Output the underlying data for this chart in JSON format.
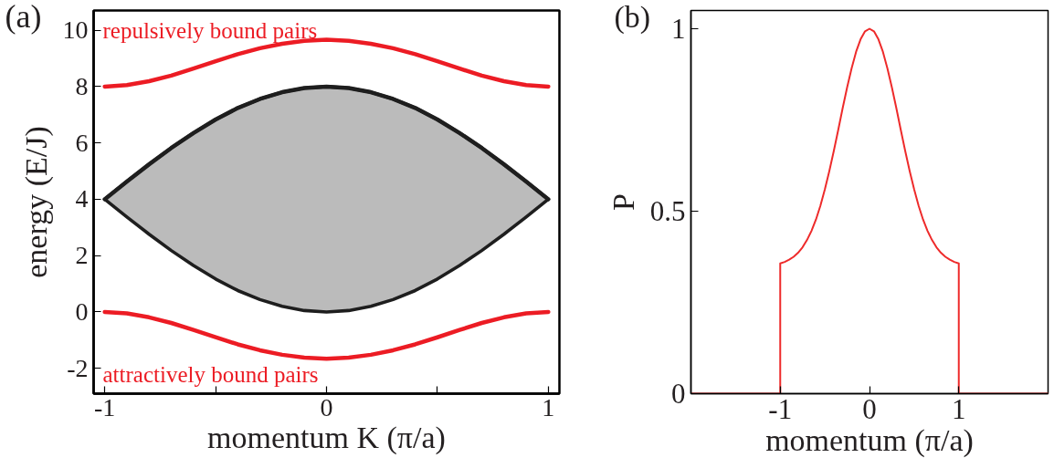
{
  "chart_data": [
    {
      "type": "line",
      "title": "(a)",
      "xlabel": "momentum K (π/a)",
      "ylabel": "energy (E/J)",
      "x": [
        -1,
        -0.9,
        -0.8,
        -0.7,
        -0.6,
        -0.5,
        -0.4,
        -0.3,
        -0.2,
        -0.1,
        0,
        0.1,
        0.2,
        0.3,
        0.4,
        0.5,
        0.6,
        0.7,
        0.8,
        0.9,
        1
      ],
      "series": [
        {
          "type": "line",
          "color": "#1e1e1e",
          "values": [
            4.0,
            4.63,
            5.24,
            5.82,
            6.35,
            6.83,
            7.24,
            7.56,
            7.8,
            7.95,
            8.0,
            7.95,
            7.8,
            7.56,
            7.24,
            6.83,
            6.35,
            5.82,
            5.24,
            4.63,
            4.0
          ],
          "lower": [
            4.0,
            3.37,
            2.76,
            2.18,
            1.65,
            1.17,
            0.76,
            0.44,
            0.2,
            0.05,
            0.0,
            0.05,
            0.2,
            0.44,
            0.76,
            1.17,
            1.65,
            2.18,
            2.76,
            3.37,
            4.0
          ],
          "upper": [
            4.0,
            4.63,
            5.24,
            5.82,
            6.35,
            6.83,
            7.24,
            7.56,
            7.8,
            7.95,
            8.0,
            7.95,
            7.8,
            7.56,
            7.24,
            6.83,
            6.35,
            5.82,
            5.24,
            4.63,
            4.0
          ]
        },
        {
          "type": "line",
          "name": "repulsively bound pairs",
          "color": "#ec1c24",
          "values": [
            8.0,
            8.05,
            8.19,
            8.39,
            8.64,
            8.9,
            9.15,
            9.36,
            9.52,
            9.62,
            9.66,
            9.62,
            9.52,
            9.36,
            9.15,
            8.9,
            8.64,
            8.39,
            8.19,
            8.05,
            8.0
          ]
        },
        {
          "type": "line",
          "name": "attractively bound pairs",
          "color": "#ec1c24",
          "values": [
            0.0,
            -0.05,
            -0.19,
            -0.39,
            -0.64,
            -0.9,
            -1.15,
            -1.36,
            -1.52,
            -1.62,
            -1.66,
            -1.62,
            -1.52,
            -1.36,
            -1.15,
            -0.9,
            -0.64,
            -0.39,
            -0.19,
            -0.05,
            0.0
          ]
        }
      ],
      "xlim": [
        -1.05,
        1.05
      ],
      "ylim": [
        -2.9,
        10.7
      ],
      "xticks": [
        -1,
        {
          "value": -0.5,
          "label": null
        },
        0,
        {
          "value": 0.5,
          "label": null
        },
        1
      ],
      "yticks": [
        -2,
        0,
        2,
        4,
        6,
        8,
        10
      ]
    },
    {
      "type": "line",
      "title": "(b)",
      "xlabel": "momentum (π/a)",
      "ylabel": "P",
      "series": [
        {
          "color": "#ee2b2b",
          "x": [
            -2,
            -1,
            -1,
            -0.95,
            -0.9,
            -0.85,
            -0.8,
            -0.75,
            -0.7,
            -0.65,
            -0.6,
            -0.55,
            -0.5,
            -0.45,
            -0.4,
            -0.35,
            -0.3,
            -0.25,
            -0.2,
            -0.15,
            -0.1,
            -0.05,
            0,
            0.05,
            0.1,
            0.15,
            0.2,
            0.25,
            0.3,
            0.35,
            0.4,
            0.45,
            0.5,
            0.55,
            0.6,
            0.65,
            0.7,
            0.75,
            0.8,
            0.85,
            0.9,
            0.95,
            1,
            1,
            2
          ],
          "values": [
            0,
            0,
            0.357,
            0.361,
            0.367,
            0.375,
            0.386,
            0.401,
            0.421,
            0.446,
            0.477,
            0.515,
            0.56,
            0.61,
            0.665,
            0.723,
            0.783,
            0.84,
            0.892,
            0.937,
            0.971,
            0.993,
            1.0,
            0.993,
            0.971,
            0.937,
            0.892,
            0.84,
            0.783,
            0.723,
            0.665,
            0.61,
            0.56,
            0.515,
            0.477,
            0.446,
            0.421,
            0.401,
            0.386,
            0.375,
            0.367,
            0.361,
            0.357,
            0,
            0
          ]
        }
      ],
      "xlim": [
        -2,
        2
      ],
      "ylim": [
        0,
        1.05
      ],
      "xticks": [
        -1,
        0,
        1
      ],
      "yticks": [
        0,
        0.5,
        1
      ]
    }
  ]
}
